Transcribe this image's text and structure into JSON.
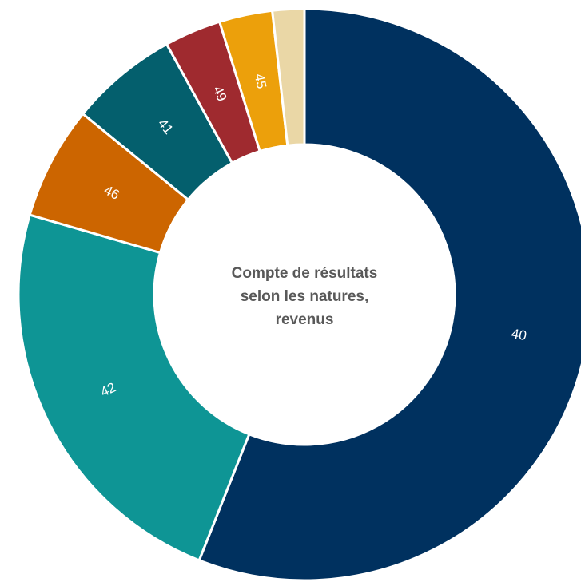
{
  "chart_data": {
    "type": "donut",
    "title": "Compte de résultats selon les natures, revenus",
    "categories": [
      "40",
      "42",
      "46",
      "41",
      "49",
      "45",
      null
    ],
    "values": [
      56,
      23.5,
      6.4,
      6.1,
      3.2,
      3.0,
      1.8
    ],
    "colors": [
      "#00315f",
      "#0e9595",
      "#cc6500",
      "#045f6d",
      "#9f2a2f",
      "#eca00b",
      "#ead7a6"
    ]
  }
}
